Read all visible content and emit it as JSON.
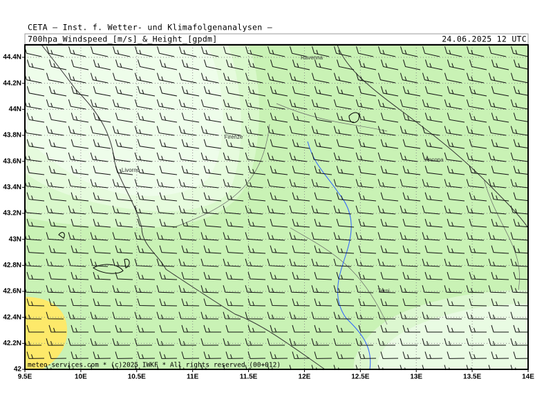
{
  "header": {
    "line1": "CETA – Inst. f. Wetter- und Klimafolgenanalysen –",
    "product": "700hpa_Windspeed_[m/s]_&_Height_[gpdm]",
    "datetime": "24.06.2025 12 UTC"
  },
  "map": {
    "lat_ticks": [
      42,
      {
        "value": 42.2,
        "label": "42.2N"
      },
      {
        "value": 42.4,
        "label": "42.4N"
      },
      {
        "value": 42.6,
        "label": "42.6N"
      },
      {
        "value": 42.8,
        "label": "42.8N"
      },
      {
        "value": 43,
        "label": "43N"
      },
      {
        "value": 43.2,
        "label": "43.2N"
      },
      {
        "value": 43.4,
        "label": "43.4N"
      },
      {
        "value": 43.6,
        "label": "43.6N"
      },
      {
        "value": 43.8,
        "label": "43.8N"
      },
      {
        "value": 44,
        "label": "44N"
      },
      {
        "value": 44.2,
        "label": "44.2N"
      },
      {
        "value": 44.4,
        "label": "44.4N"
      }
    ],
    "lon_ticks": [
      {
        "value": 9.5,
        "label": "9.5E"
      },
      {
        "value": 10,
        "label": "10E"
      },
      {
        "value": 10.5,
        "label": "10.5E"
      },
      {
        "value": 11,
        "label": "11E"
      },
      {
        "value": 11.5,
        "label": "11.5E"
      },
      {
        "value": 12,
        "label": "12E"
      },
      {
        "value": 12.5,
        "label": "12.5E"
      },
      {
        "value": 13,
        "label": "13E"
      },
      {
        "value": 13.5,
        "label": "13.5E"
      },
      {
        "value": 14,
        "label": "14E"
      }
    ],
    "cities": [
      "Ravenna",
      "Firenze",
      "Livorno",
      "Ancona",
      "Terni"
    ],
    "footer": "meteo-services.com * (c)2025 IWKF * All rights reserved (00+012)"
  }
}
